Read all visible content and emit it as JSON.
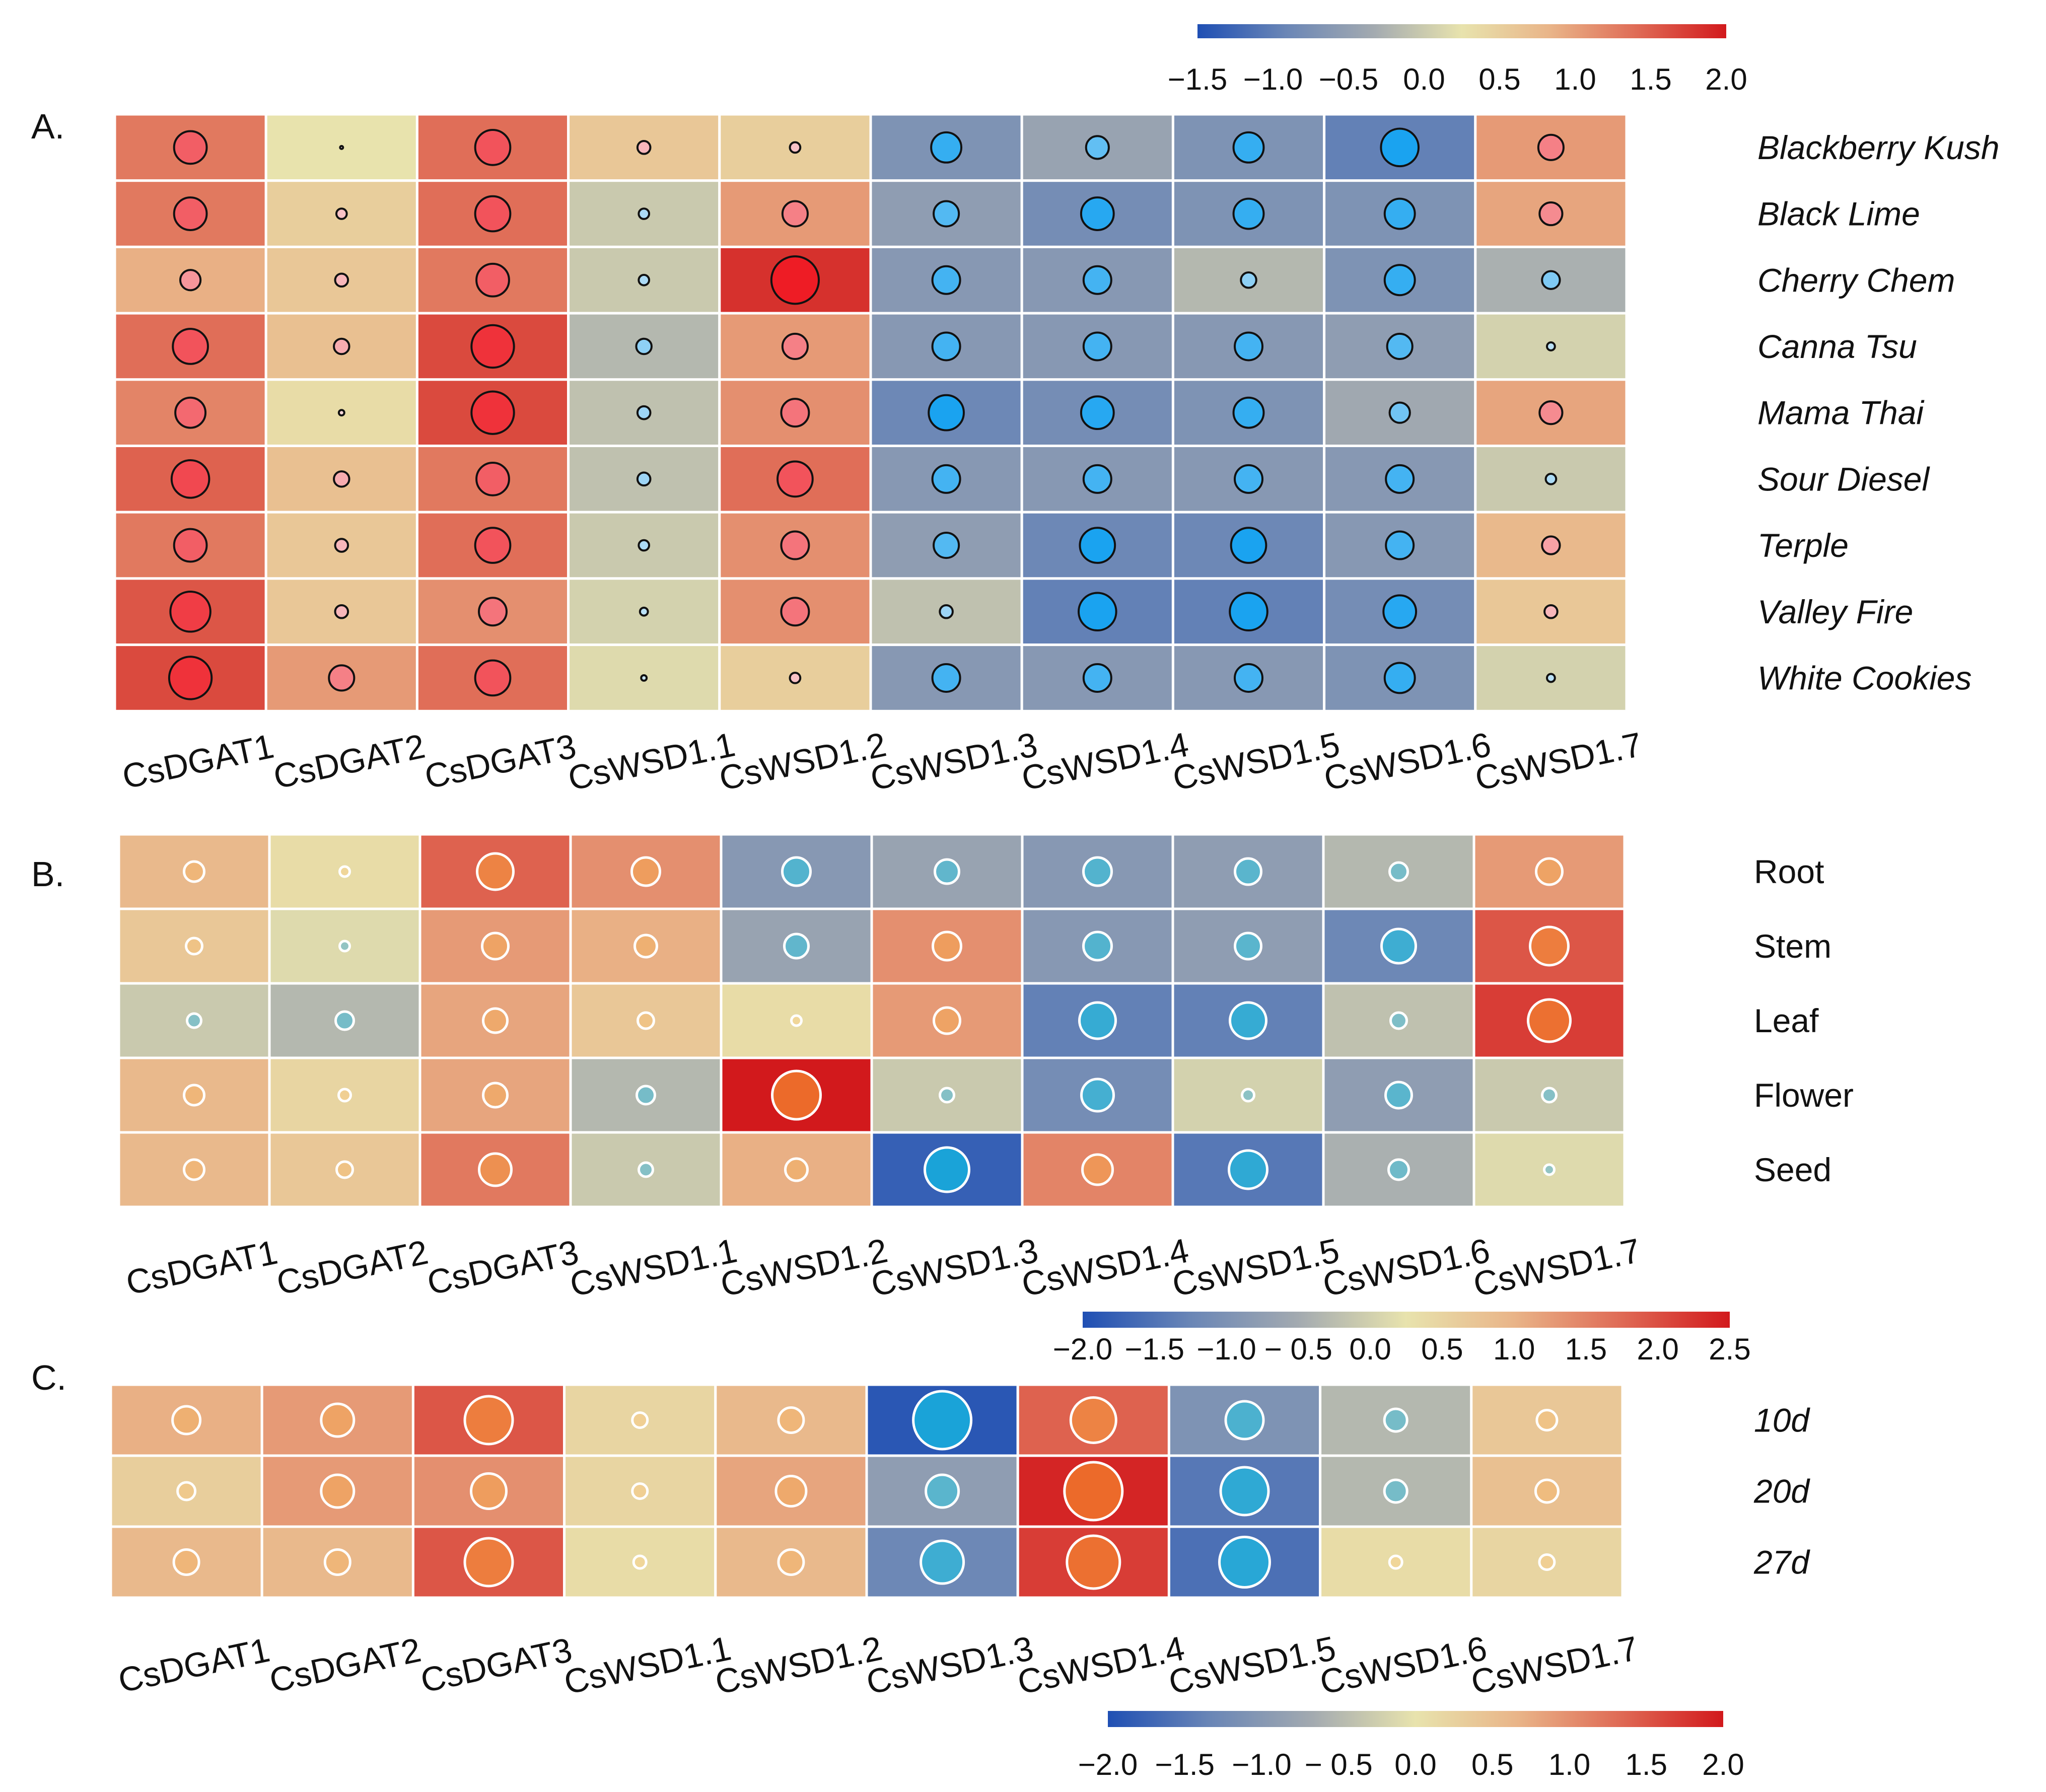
{
  "colors": {
    "heat_ramp": [
      "#1f4fb4",
      "#6a86b6",
      "#a3aab0",
      "#e8e3ad",
      "#e9b488",
      "#df6a55",
      "#d2191c"
    ],
    "circle_cool": "#1aa3f0",
    "circle_warm": "#ee1c25",
    "circle_neutral": "#ffffff",
    "cell_border": "#ffffff",
    "outline_dark": "#111111",
    "outline_light": "#ffffff"
  },
  "chart_data": [
    {
      "type": "heatmap",
      "panel_label": "A.",
      "row_label_italic": true,
      "circle_style": "dark-outline",
      "colorbar": {
        "ticks": [
          "−1.5",
          "−1.0",
          "−0.5",
          "0.0",
          "0.5",
          "1.0",
          "1.5",
          "2.0"
        ],
        "range": [
          -1.5,
          2.0
        ]
      },
      "columns": [
        "CsDGAT1",
        "CsDGAT2",
        "CsDGAT3",
        "CsWSD1.1",
        "CsWSD1.2",
        "CsWSD1.3",
        "CsWSD1.4",
        "CsWSD1.5",
        "CsWSD1.6",
        "CsWSD1.7"
      ],
      "rows": [
        "Blackberry Kush",
        "Black Lime",
        "Cherry Chem",
        "Canna Tsu",
        "Mama Thai",
        "Sour Diesel",
        "Terple",
        "Valley Fire",
        "White Cookies"
      ],
      "values": [
        [
          1.2,
          0.0,
          1.3,
          0.4,
          0.3,
          -1.1,
          -0.8,
          -1.1,
          -1.4,
          0.9
        ],
        [
          1.2,
          0.3,
          1.3,
          -0.3,
          0.9,
          -0.9,
          -1.2,
          -1.1,
          -1.1,
          0.8
        ],
        [
          0.7,
          0.4,
          1.2,
          -0.3,
          1.8,
          -1.0,
          -1.0,
          -0.5,
          -1.1,
          -0.6
        ],
        [
          1.3,
          0.5,
          1.6,
          -0.5,
          0.9,
          -1.0,
          -1.0,
          -1.0,
          -0.9,
          -0.2
        ],
        [
          1.1,
          0.1,
          1.6,
          -0.4,
          1.0,
          -1.3,
          -1.2,
          -1.1,
          -0.7,
          0.8
        ],
        [
          1.4,
          0.5,
          1.2,
          -0.4,
          1.3,
          -1.0,
          -1.0,
          -1.0,
          -1.0,
          -0.3
        ],
        [
          1.2,
          0.4,
          1.3,
          -0.3,
          1.0,
          -0.9,
          -1.3,
          -1.3,
          -1.0,
          0.6
        ],
        [
          1.5,
          0.4,
          1.0,
          -0.2,
          1.0,
          -0.4,
          -1.4,
          -1.4,
          -1.2,
          0.4
        ],
        [
          1.6,
          0.9,
          1.3,
          -0.1,
          0.3,
          -1.0,
          -1.0,
          -1.0,
          -1.1,
          -0.2
        ]
      ]
    },
    {
      "type": "heatmap",
      "panel_label": "B.",
      "row_label_italic": false,
      "circle_style": "light-outline",
      "colorbar": null,
      "columns": [
        "CsDGAT1",
        "CsDGAT2",
        "CsDGAT3",
        "CsWSD1.1",
        "CsWSD1.2",
        "CsWSD1.3",
        "CsWSD1.4",
        "CsWSD1.5",
        "CsWSD1.6",
        "CsWSD1.7"
      ],
      "rows": [
        "Root",
        "Stem",
        "Leaf",
        "Flower",
        "Seed"
      ],
      "values": [
        [
          0.6,
          0.1,
          1.4,
          1.0,
          -1.0,
          -0.8,
          -1.0,
          -0.9,
          -0.5,
          0.9
        ],
        [
          0.4,
          -0.1,
          0.9,
          0.7,
          -0.8,
          1.0,
          -1.0,
          -0.9,
          -1.3,
          1.5
        ],
        [
          -0.3,
          -0.5,
          0.8,
          0.4,
          0.1,
          0.9,
          -1.4,
          -1.4,
          -0.4,
          1.7
        ],
        [
          0.6,
          0.2,
          0.8,
          -0.5,
          2.0,
          -0.3,
          -1.2,
          -0.2,
          -0.9,
          -0.3
        ],
        [
          0.6,
          0.4,
          1.2,
          -0.3,
          0.7,
          -1.8,
          1.1,
          -1.5,
          -0.6,
          -0.1
        ]
      ]
    },
    {
      "type": "heatmap",
      "panel_label": "C.",
      "row_label_italic": true,
      "circle_style": "light-outline",
      "colorbar": null,
      "columns": [
        "CsDGAT1",
        "CsDGAT2",
        "CsDGAT3",
        "CsWSD1.1",
        "CsWSD1.2",
        "CsWSD1.3",
        "CsWSD1.4",
        "CsWSD1.5",
        "CsWSD1.6",
        "CsWSD1.7"
      ],
      "rows": [
        "10d",
        "20d",
        "27d"
      ],
      "values": [
        [
          0.7,
          0.9,
          1.5,
          0.2,
          0.6,
          -1.9,
          1.4,
          -1.1,
          -0.5,
          0.4
        ],
        [
          0.3,
          0.9,
          1.0,
          0.2,
          0.8,
          -0.9,
          1.9,
          -1.5,
          -0.5,
          0.5
        ],
        [
          0.6,
          0.6,
          1.5,
          0.1,
          0.6,
          -1.3,
          1.7,
          -1.6,
          0.1,
          0.2
        ]
      ]
    }
  ],
  "colorbars": [
    {
      "ticks": [
        "−2.0",
        "−1.5",
        "−1.0",
        "− 0.5",
        "0.0",
        "0.5",
        "1.0",
        "1.5",
        "2.0",
        "2.5"
      ],
      "range": [
        -2.0,
        2.5
      ]
    },
    {
      "ticks": [
        "−2.0",
        "−1.5",
        "−1.0",
        "− 0.5",
        "0.0",
        "0.5",
        "1.0",
        "1.5",
        "2.0"
      ],
      "range": [
        -2.0,
        2.0
      ]
    }
  ]
}
